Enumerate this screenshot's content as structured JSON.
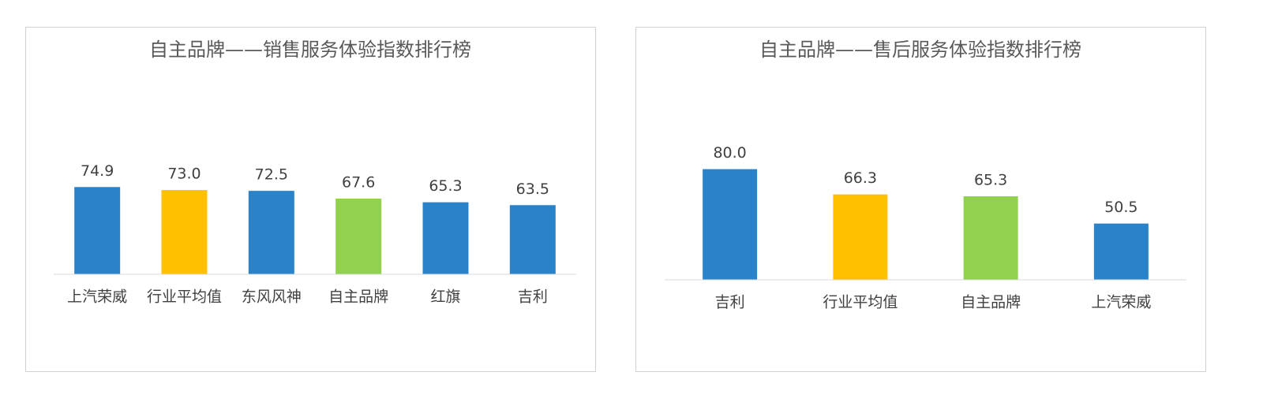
{
  "chart_data": [
    {
      "type": "bar",
      "title": "自主品牌——销售服务体验指数排行榜",
      "categories": [
        "上汽荣威",
        "行业平均值",
        "东风风神",
        "自主品牌",
        "红旗",
        "吉利"
      ],
      "values": [
        74.9,
        73.0,
        72.5,
        67.6,
        65.3,
        63.5
      ],
      "value_labels": [
        "74.9",
        "73.0",
        "72.5",
        "67.6",
        "65.3",
        "63.5"
      ],
      "colors": [
        "#2a83c9",
        "#ffc000",
        "#2a83c9",
        "#92d050",
        "#2a83c9",
        "#2a83c9"
      ],
      "ylim": [
        20,
        140
      ]
    },
    {
      "type": "bar",
      "title": "自主品牌——售后服务体验指数排行榜",
      "categories": [
        "吉利",
        "行业平均值",
        "自主品牌",
        "上汽荣威"
      ],
      "values": [
        80.0,
        66.3,
        65.3,
        50.5
      ],
      "value_labels": [
        "80.0",
        "66.3",
        "65.3",
        "50.5"
      ],
      "colors": [
        "#2a83c9",
        "#ffc000",
        "#92d050",
        "#2a83c9"
      ],
      "ylim": [
        20,
        120
      ]
    }
  ]
}
